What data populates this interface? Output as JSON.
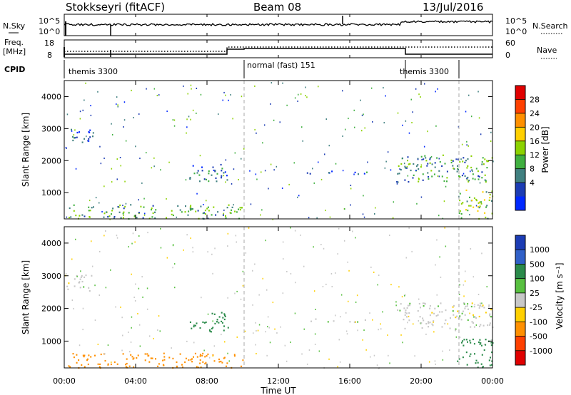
{
  "header": {
    "station": "Stokkseyri (fitACF)",
    "beam": "Beam 08",
    "date": "13/Jul/2016"
  },
  "top_panels": {
    "nsky_label": "N.Sky",
    "nsky_ticks": [
      "10^5",
      "10^0"
    ],
    "nsearch_label": "N.Search",
    "nsearch_ticks": [
      "10^5",
      "10^0"
    ],
    "freq_label_1": "Freq.",
    "freq_label_2": "[MHz]",
    "freq_ticks": [
      "18",
      "8"
    ],
    "nave_label": "Nave",
    "nave_ticks": [
      "60",
      "0"
    ],
    "cpid_label": "CPID",
    "cpid_segments": [
      "themis 3300",
      "normal (fast) 151",
      "themis 3300"
    ]
  },
  "power_panel": {
    "ylabel": "Slant Range [km]",
    "yticks": [
      "4000",
      "3000",
      "2000",
      "1000"
    ],
    "cbar_label": "Power [dB]",
    "cbar_ticks": [
      "28",
      "24",
      "20",
      "16",
      "12",
      "8",
      "4"
    ],
    "cbar_colors": [
      "#e00000",
      "#ff4000",
      "#ff9000",
      "#ffd000",
      "#8cd200",
      "#40b040",
      "#408080",
      "#1c3cb4",
      "#0028ff"
    ]
  },
  "velocity_panel": {
    "ylabel": "Slant Range [km]",
    "yticks": [
      "4000",
      "3000",
      "2000",
      "1000"
    ],
    "cbar_label": "Velocity [m s⁻¹]",
    "cbar_ticks": [
      "1000",
      "500",
      "100",
      "25",
      "-25",
      "-100",
      "-500",
      "-1000"
    ],
    "cbar_colors": [
      "#1c3cb4",
      "#3060c8",
      "#2a8a4a",
      "#58c040",
      "#c8c8c8",
      "#ffd000",
      "#ff9000",
      "#ff4000",
      "#e00000"
    ]
  },
  "x_axis": {
    "label": "Time UT",
    "ticks": [
      "00:00",
      "04:00",
      "08:00",
      "12:00",
      "16:00",
      "20:00",
      "00:00"
    ]
  },
  "chart_data": {
    "type": "heatmap",
    "title": "Stokkseyri (fitACF)",
    "xlabel": "Time UT",
    "ylabel": "Slant Range [km]",
    "xlim": [
      0,
      24
    ],
    "ylim": [
      180,
      4500
    ],
    "markers_hours": [
      10.0,
      21.8
    ],
    "cpid_changes_hours": [
      0.25,
      10.0,
      18.8,
      21.8
    ],
    "power_regions": [
      {
        "t": [
          0.1,
          1.6
        ],
        "r": [
          2550,
          3050
        ],
        "db": 6
      },
      {
        "t": [
          7.0,
          9.2
        ],
        "r": [
          1300,
          1900
        ],
        "db": 7
      },
      {
        "t": [
          0.2,
          10.0
        ],
        "r": [
          200,
          650
        ],
        "db": 10
      },
      {
        "t": [
          13.5,
          17.0
        ],
        "r": [
          1600,
          1700
        ],
        "db": 7
      },
      {
        "t": [
          18.6,
          24.0
        ],
        "r": [
          1350,
          2200
        ],
        "db": 9
      },
      {
        "t": [
          22.0,
          24.0
        ],
        "r": [
          200,
          1100
        ],
        "db": 12
      }
    ],
    "velocity_regions": [
      {
        "t": [
          0.1,
          1.6
        ],
        "r": [
          2550,
          3050
        ],
        "v": 0
      },
      {
        "t": [
          7.0,
          9.2
        ],
        "r": [
          1300,
          1900
        ],
        "v": 100
      },
      {
        "t": [
          0.2,
          10.0
        ],
        "r": [
          200,
          650
        ],
        "v": -100
      },
      {
        "t": [
          13.5,
          17.0
        ],
        "r": [
          1600,
          1700
        ],
        "v": 0
      },
      {
        "t": [
          18.6,
          24.0
        ],
        "r": [
          1350,
          2200
        ],
        "v": 0
      },
      {
        "t": [
          22.0,
          24.0
        ],
        "r": [
          200,
          1100
        ],
        "v": 100
      }
    ]
  }
}
